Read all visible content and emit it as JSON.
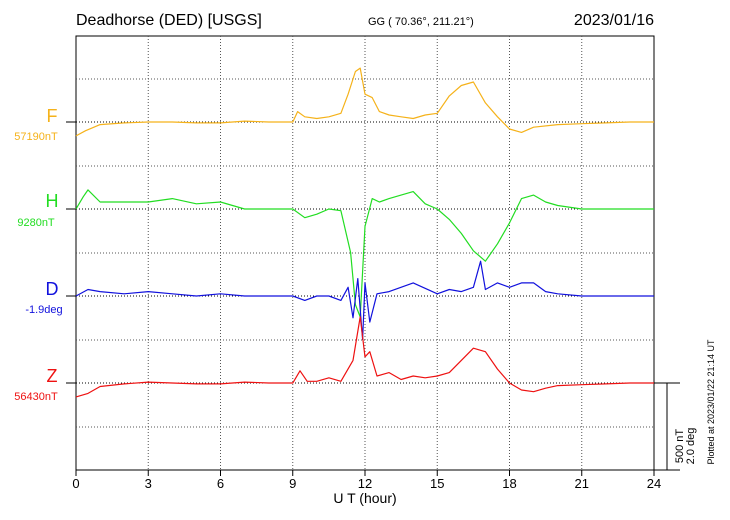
{
  "header": {
    "station": "Deadhorse (DED)  [USGS]",
    "coords": "GG ( 70.36°, 211.21°)",
    "date": "2023/01/16"
  },
  "side_note": "Plotted at 2023/01/22 21:14 UT",
  "scale": {
    "nt": "500 nT",
    "deg": "2.0 deg"
  },
  "colors": {
    "F": "#f5b21a",
    "H": "#22dd22",
    "D": "#1111dd",
    "Z": "#ee1111"
  },
  "chart_data": {
    "type": "line",
    "title": "Deadhorse (DED)  [USGS]",
    "xlabel": "U T (hour)",
    "xlim": [
      0,
      24
    ],
    "x_ticks": [
      0,
      3,
      6,
      9,
      12,
      15,
      18,
      21,
      24
    ],
    "x_tick_labels": [
      "0",
      "3",
      "6",
      "9",
      "12",
      "15",
      "18",
      "21",
      "24"
    ],
    "grid": true,
    "series": [
      {
        "name": "F",
        "baseline_label": "57190nT",
        "x": [
          0,
          0.4,
          1,
          2,
          3,
          4,
          5,
          6,
          7,
          8,
          9,
          9.2,
          9.5,
          10,
          10.5,
          11,
          11.3,
          11.6,
          11.8,
          12,
          12.3,
          12.6,
          13,
          13.5,
          14,
          14.5,
          15,
          15.5,
          16,
          16.5,
          17,
          17.5,
          18,
          18.5,
          19,
          20,
          21,
          22,
          23,
          24
        ],
        "values": [
          -80,
          -50,
          -15,
          -5,
          0,
          0,
          -5,
          -5,
          5,
          0,
          0,
          60,
          30,
          20,
          30,
          50,
          160,
          290,
          310,
          160,
          140,
          60,
          40,
          30,
          20,
          40,
          50,
          150,
          210,
          230,
          110,
          30,
          -40,
          -60,
          -30,
          -15,
          -10,
          -5,
          0,
          0
        ]
      },
      {
        "name": "H",
        "baseline_label": "9280nT",
        "x": [
          0,
          0.3,
          0.5,
          1,
          2,
          3,
          4,
          5,
          6,
          7,
          8,
          9,
          9.5,
          10,
          10.5,
          11,
          11.4,
          11.6,
          11.8,
          12,
          12.3,
          12.6,
          13,
          13.5,
          14,
          14.5,
          15,
          15.5,
          16,
          16.5,
          17,
          17.5,
          18,
          18.5,
          19,
          19.5,
          20,
          21,
          22,
          23,
          24
        ],
        "values": [
          0,
          70,
          110,
          40,
          40,
          40,
          60,
          30,
          40,
          0,
          0,
          0,
          -50,
          -30,
          0,
          -10,
          -250,
          -550,
          -620,
          -100,
          60,
          40,
          60,
          80,
          100,
          30,
          0,
          -60,
          -140,
          -240,
          -300,
          -200,
          -80,
          60,
          80,
          40,
          20,
          0,
          0,
          0,
          0
        ]
      },
      {
        "name": "D",
        "baseline_label": "-1.9deg",
        "x": [
          0,
          0.5,
          1,
          2,
          3,
          4,
          5,
          6,
          7,
          8,
          9,
          9.5,
          10,
          10.5,
          11,
          11.3,
          11.5,
          11.7,
          11.9,
          12,
          12.2,
          12.5,
          13,
          14,
          15,
          15.5,
          16,
          16.5,
          16.8,
          17,
          17.5,
          18,
          18.5,
          19,
          19.5,
          20,
          21,
          22,
          23,
          24
        ],
        "values": [
          0,
          0.15,
          0.1,
          0.05,
          0.1,
          0.05,
          0,
          0.05,
          0,
          0,
          0,
          -0.1,
          0,
          0,
          -0.1,
          0.2,
          -0.5,
          0.4,
          -1.0,
          0.3,
          -0.6,
          0.05,
          0.1,
          0.3,
          0.05,
          0.15,
          0.1,
          0.2,
          0.8,
          0.15,
          0.3,
          0.2,
          0.3,
          0.3,
          0.1,
          0.05,
          0,
          0,
          0,
          0
        ]
      },
      {
        "name": "Z",
        "baseline_label": "56430nT",
        "x": [
          0,
          0.5,
          1,
          2,
          3,
          4,
          5,
          6,
          7,
          8,
          9,
          9.3,
          9.6,
          10,
          10.5,
          11,
          11.5,
          11.8,
          12,
          12.2,
          12.5,
          13,
          13.5,
          14,
          14.5,
          15,
          15.5,
          16,
          16.5,
          17,
          17.5,
          18,
          18.5,
          19,
          19.5,
          20,
          21,
          22,
          23,
          24
        ],
        "values": [
          -80,
          -60,
          -20,
          -5,
          5,
          0,
          -5,
          -5,
          5,
          0,
          0,
          70,
          10,
          10,
          30,
          10,
          130,
          380,
          150,
          180,
          40,
          60,
          20,
          40,
          30,
          40,
          60,
          130,
          200,
          180,
          80,
          0,
          -40,
          -50,
          -30,
          -15,
          -10,
          -5,
          0,
          0
        ]
      }
    ]
  }
}
